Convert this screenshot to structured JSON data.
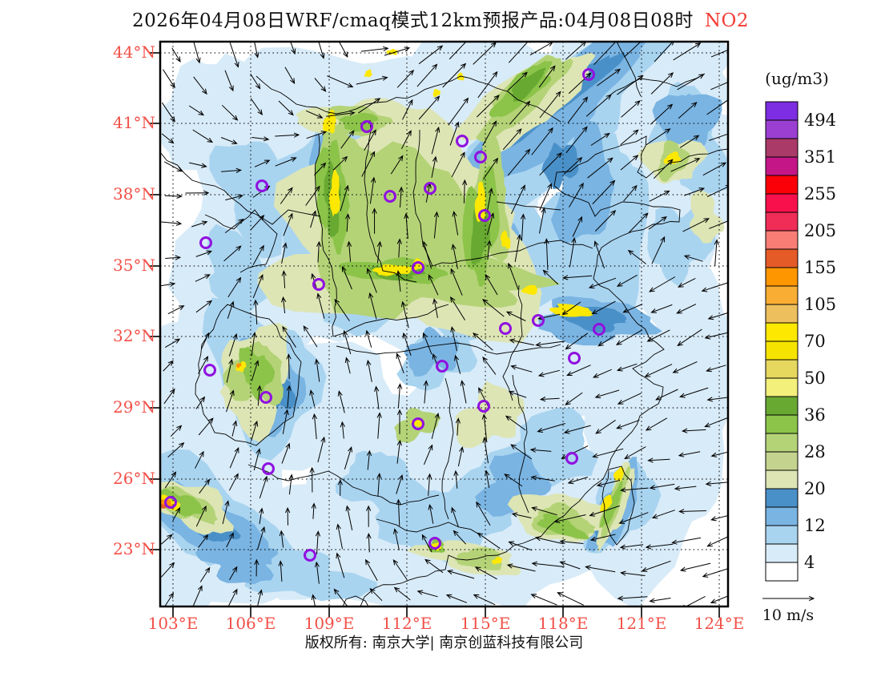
{
  "title": {
    "text": "2026年04月08日WRF/cmaq模式12km预报产品:04月08日08时",
    "pollutant": "NO2"
  },
  "colorbar": {
    "unit": "(ug/m3)",
    "levels": [
      "494",
      "351",
      "255",
      "205",
      "155",
      "105",
      "70",
      "50",
      "36",
      "28",
      "20",
      "12",
      "4"
    ],
    "colors": [
      "#7d2de2",
      "#9b3fd3",
      "#aa3a68",
      "#c41687",
      "#fb0007",
      "#f8104c",
      "#ef2d57",
      "#f87d74",
      "#e55b28",
      "#fe9600",
      "#f9ae33",
      "#edbf5d",
      "#fde802",
      "#f6e400",
      "#e6d75f",
      "#f3f07b",
      "#68a932",
      "#8cc44a",
      "#b4d377",
      "#c4d48f",
      "#dde5b5",
      "#4a90c8",
      "#7ab4e2",
      "#a9d4f0",
      "#d8ebf8",
      "#ffffff"
    ]
  },
  "axes": {
    "lat": [
      "44°N",
      "41°N",
      "38°N",
      "35°N",
      "32°N",
      "29°N",
      "26°N",
      "23°N"
    ],
    "lon": [
      "103°E",
      "106°E",
      "109°E",
      "112°E",
      "115°E",
      "118°E",
      "121°E",
      "124°E"
    ]
  },
  "wind": {
    "ref_label": "10 m/s"
  },
  "footer": {
    "copyright": "版权所有: 南京大学| 南京创蓝科技有限公司"
  },
  "map": {
    "marker_color": "#9010e0",
    "axis_label_color": "#f25048"
  }
}
